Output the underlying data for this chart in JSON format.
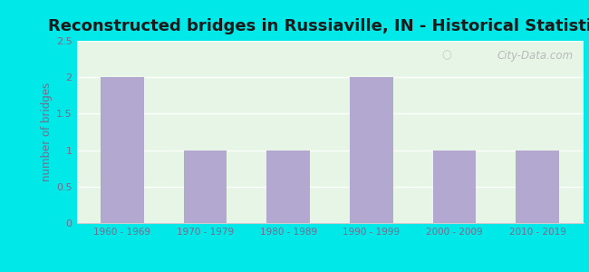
{
  "title": "Reconstructed bridges in Russiaville, IN - Historical Statistics",
  "categories": [
    "1960 - 1969",
    "1970 - 1979",
    "1980 - 1989",
    "1990 - 1999",
    "2000 - 2009",
    "2010 - 2019"
  ],
  "values": [
    2,
    1,
    1,
    2,
    1,
    1
  ],
  "bar_color": "#b3a8d0",
  "ylabel": "number of bridges",
  "ylim": [
    0,
    2.5
  ],
  "yticks": [
    0,
    0.5,
    1,
    1.5,
    2,
    2.5
  ],
  "background_outer": "#00e8e8",
  "background_inner": "#e6f5e6",
  "title_fontsize": 13,
  "title_color": "#1a1a1a",
  "axis_label_color": "#7a6a8a",
  "tick_color": "#7a6a8a",
  "watermark": "City-Data.com",
  "grid_color": "#ffffff",
  "spine_color": "#cccccc"
}
